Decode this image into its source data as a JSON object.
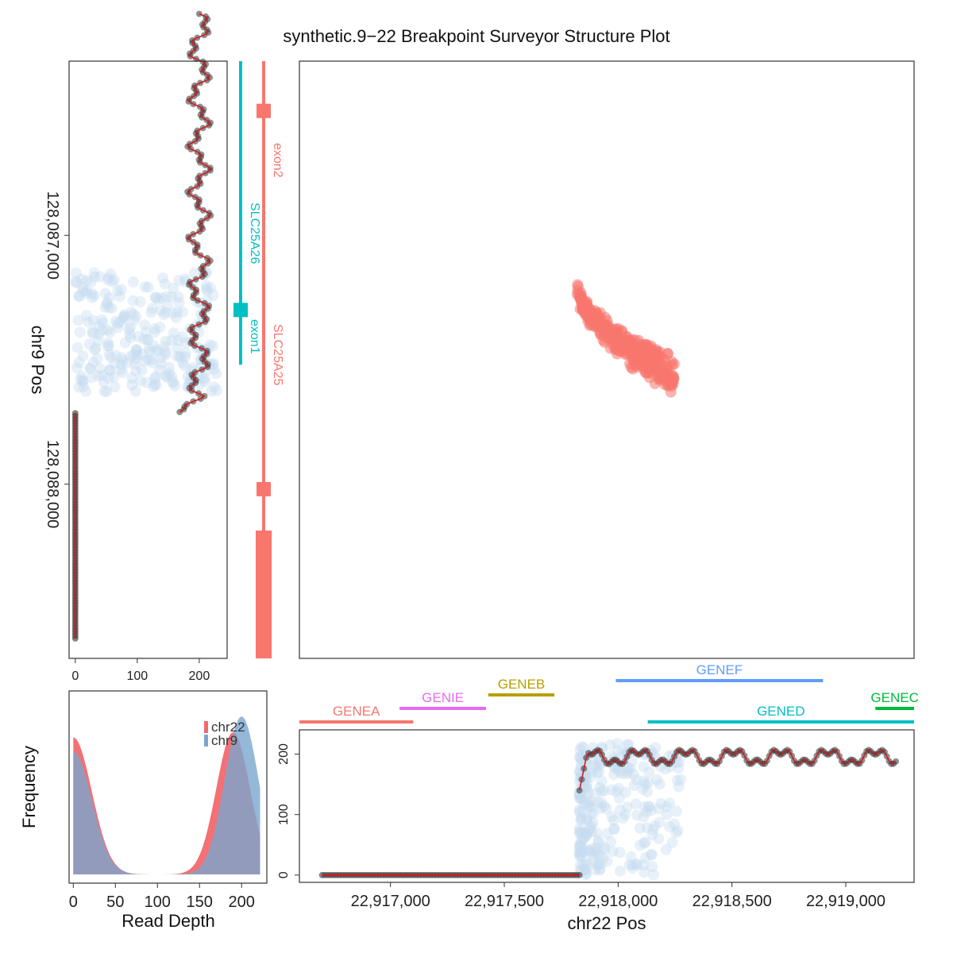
{
  "title": "synthetic.9−22 Breakpoint Surveyor Structure Plot",
  "colors": {
    "red": "#f8766d",
    "teal": "#00bfc4",
    "blue_point": "#c6dbef",
    "dark_point": "#333333",
    "segment": "#d7191c",
    "chr9_density": "#7aa6cf",
    "chr22_density": "#f2686e",
    "overlap": "#7a6a95",
    "gene_colors": {
      "GENEA": "#f8766d",
      "GENIE": "#e76bf3",
      "GENEB": "#b79f00",
      "GENEF": "#619cff",
      "GENED": "#00bfc4",
      "GENEC": "#00ba38"
    }
  },
  "chart_data": [
    {
      "id": "chr9-depth",
      "type": "scatter",
      "xlabel": "",
      "ylabel": "chr9 Pos",
      "xlim": [
        -10,
        245
      ],
      "ylim": [
        128086300,
        128088700
      ],
      "y_reversed": true,
      "x_ticks": [
        "0",
        "100",
        "200"
      ],
      "x_tick_values": [
        0,
        100,
        200
      ],
      "y_ticks": [
        "128,087,000",
        "128,088,000"
      ],
      "y_tick_values": [
        128087000,
        128088000
      ],
      "series": [
        {
          "kind": "depth-low",
          "pos_range": [
            128087715,
            128088620
          ],
          "depth": 0
        },
        {
          "kind": "depth-high",
          "pos_range": [
            128086110,
            128087710
          ],
          "depth_mean": 200
        },
        {
          "kind": "discordant-scatter",
          "pos_range": [
            128087150,
            128087630
          ],
          "depth_range": [
            0,
            230
          ]
        }
      ]
    },
    {
      "id": "chr9-genes",
      "type": "table",
      "genes": [
        {
          "name": "SLC25A26",
          "start": 128086000,
          "end": 128087520,
          "color": "#00bfc4",
          "exon": "exon1",
          "exon_pos": 128087300
        },
        {
          "name": "SLC25A25",
          "start": 128086000,
          "end": 128088700,
          "color": "#f8766d",
          "exon": "exon2",
          "exon_pos": 128086500,
          "exon2b_pos": 128088020
        }
      ]
    },
    {
      "id": "structure-scatter",
      "type": "scatter",
      "xlabel": "",
      "ylabel": "",
      "xlim": [
        22916600,
        22919300
      ],
      "ylim": [
        128086300,
        128088700
      ],
      "cluster": {
        "x_range": [
          22917820,
          22918250
        ],
        "y_range": [
          128087150,
          128087630
        ]
      }
    },
    {
      "id": "chr22-genes",
      "type": "table",
      "genes": [
        {
          "name": "GENEA",
          "start": 22916600,
          "end": 22917100
        },
        {
          "name": "GENIE",
          "start": 22917040,
          "end": 22917420
        },
        {
          "name": "GENEB",
          "start": 22917430,
          "end": 22917720
        },
        {
          "name": "GENEF",
          "start": 22917990,
          "end": 22918900
        },
        {
          "name": "GENED",
          "start": 22918130,
          "end": 22919300
        },
        {
          "name": "GENEC",
          "start": 22919130,
          "end": 22919300
        }
      ]
    },
    {
      "id": "chr22-depth",
      "type": "scatter",
      "xlabel": "chr22 Pos",
      "ylabel": "",
      "xlim": [
        22916600,
        22919300
      ],
      "ylim": [
        -12,
        240
      ],
      "x_ticks": [
        "22,917,000",
        "22,917,500",
        "22,918,000",
        "22,918,500",
        "22,919,000"
      ],
      "x_tick_values": [
        22917000,
        22917500,
        22918000,
        22918500,
        22919000
      ],
      "y_ticks": [
        "0",
        "100",
        "200"
      ],
      "y_tick_values": [
        0,
        100,
        200
      ],
      "series": [
        {
          "kind": "depth-low",
          "pos_range": [
            22916700,
            22917830
          ],
          "depth": 0
        },
        {
          "kind": "depth-high",
          "pos_range": [
            22917830,
            22919220
          ],
          "depth_mean": 195
        }
      ]
    },
    {
      "id": "depth-density",
      "type": "area",
      "xlabel": "Read Depth",
      "ylabel": "Frequency",
      "xlim": [
        -5,
        230
      ],
      "x_ticks": [
        "0",
        "50",
        "100",
        "150",
        "200"
      ],
      "x_tick_values": [
        0,
        50,
        100,
        150,
        200
      ],
      "legend": {
        "position": "top-right",
        "entries": [
          "chr22",
          "chr9"
        ]
      },
      "series": [
        {
          "name": "chr22",
          "low_peak": 0,
          "low_height": 0.78,
          "high_peak": 190,
          "high_height": 0.81
        },
        {
          "name": "chr9",
          "low_peak": 0,
          "low_height": 0.7,
          "high_peak": 200,
          "high_height": 0.9
        }
      ]
    }
  ]
}
